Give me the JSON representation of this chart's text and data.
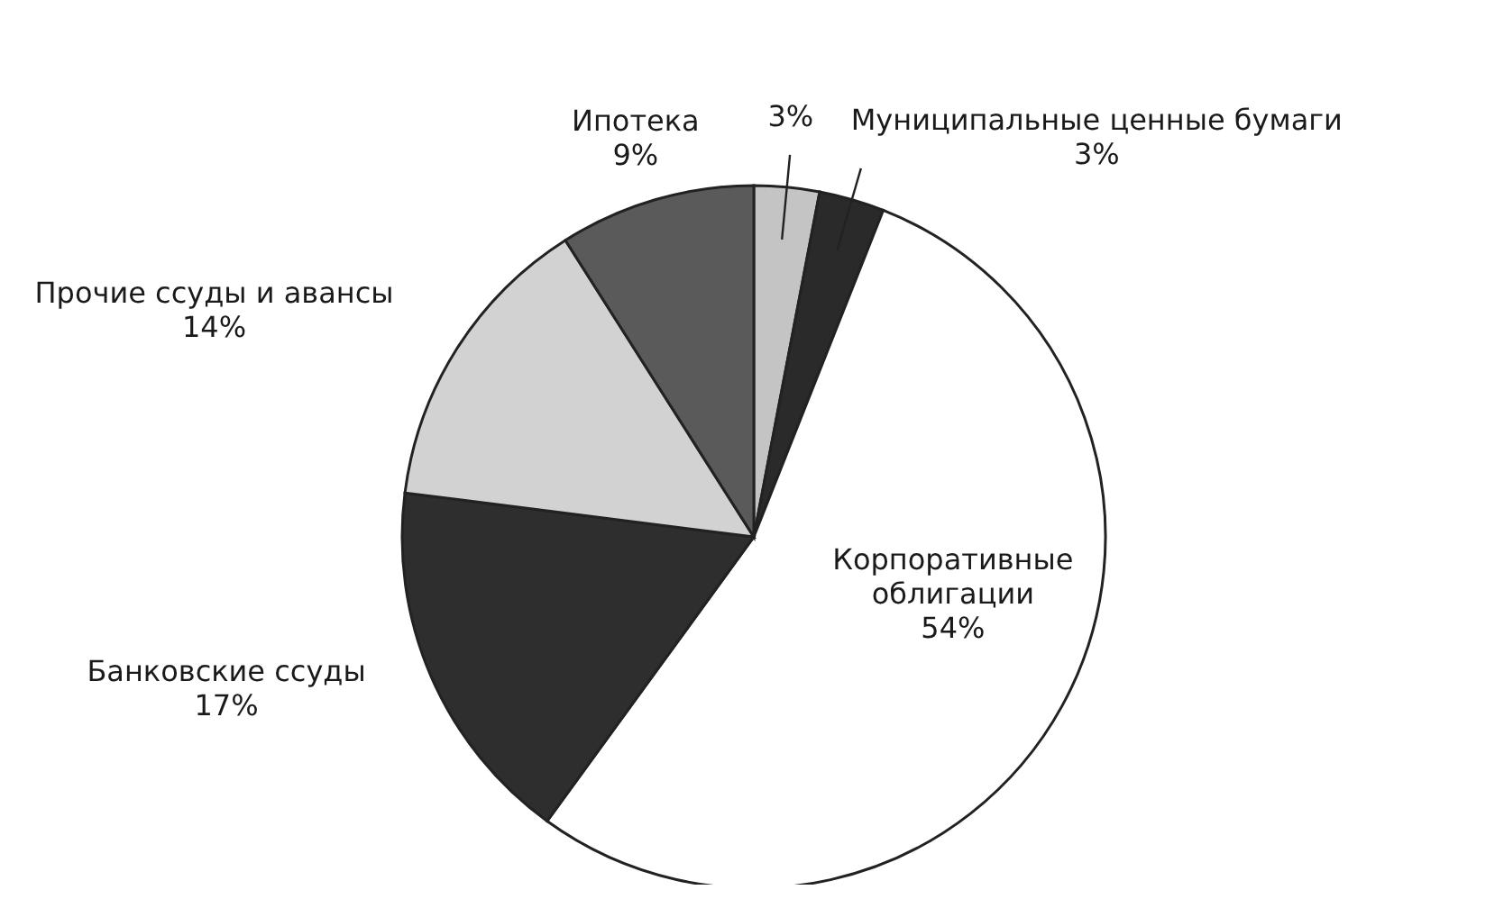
{
  "chart_data": {
    "type": "pie",
    "categories": [
      null,
      "Муниципальные ценные бумаги",
      "Корпоративные облигации",
      "Банковские ссуды",
      "Прочие ссуды и авансы",
      "Ипотека"
    ],
    "values": [
      3,
      3,
      54,
      17,
      14,
      9
    ],
    "value_labels": [
      "3%",
      "3%",
      "54%",
      "17%",
      "14%",
      "9%"
    ],
    "colors": [
      "#c4c4c4",
      "#2a2a2a",
      "#ffffff",
      "#2e2e2e",
      "#d2d2d2",
      "#5a5a5a"
    ],
    "legend": false
  }
}
